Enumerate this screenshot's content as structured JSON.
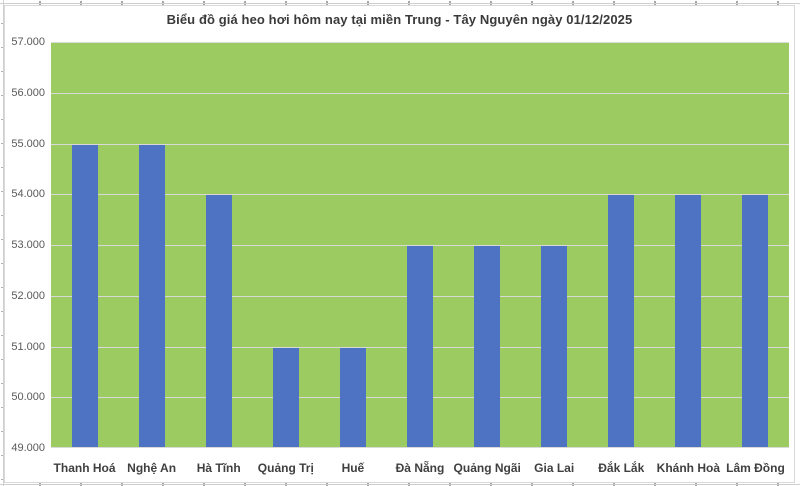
{
  "chart_data": {
    "type": "bar",
    "title": "Biểu đồ giá heo hơi hôm nay tại miền Trung - Tây Nguyên ngày 01/12/2025",
    "categories": [
      "Thanh Hoá",
      "Nghệ An",
      "Hà Tĩnh",
      "Quảng Trị",
      "Huế",
      "Đà Nẵng",
      "Quảng Ngãi",
      "Gia Lai",
      "Đắk Lắk",
      "Khánh Hoà",
      "Lâm Đồng"
    ],
    "values": [
      55000,
      55000,
      54000,
      51000,
      51000,
      53000,
      53000,
      53000,
      54000,
      54000,
      54000
    ],
    "y_tick_labels": [
      "57.000",
      "56.000",
      "55.000",
      "54.000",
      "53.000",
      "52.000",
      "51.000",
      "50.000",
      "49.000"
    ],
    "ylim": [
      49000,
      57000
    ],
    "y_step": 1000,
    "xlabel": "",
    "ylabel": "",
    "grid": true,
    "legend": "none",
    "colors": {
      "bar": "#4d73c2",
      "plot_bg": "#9ccb62",
      "gridline": "#d9d9d9",
      "title_text": "#3a3a3a",
      "y_axis_text": "#595959",
      "x_axis_text": "#404040",
      "chart_border": "#d9d9d9"
    }
  }
}
